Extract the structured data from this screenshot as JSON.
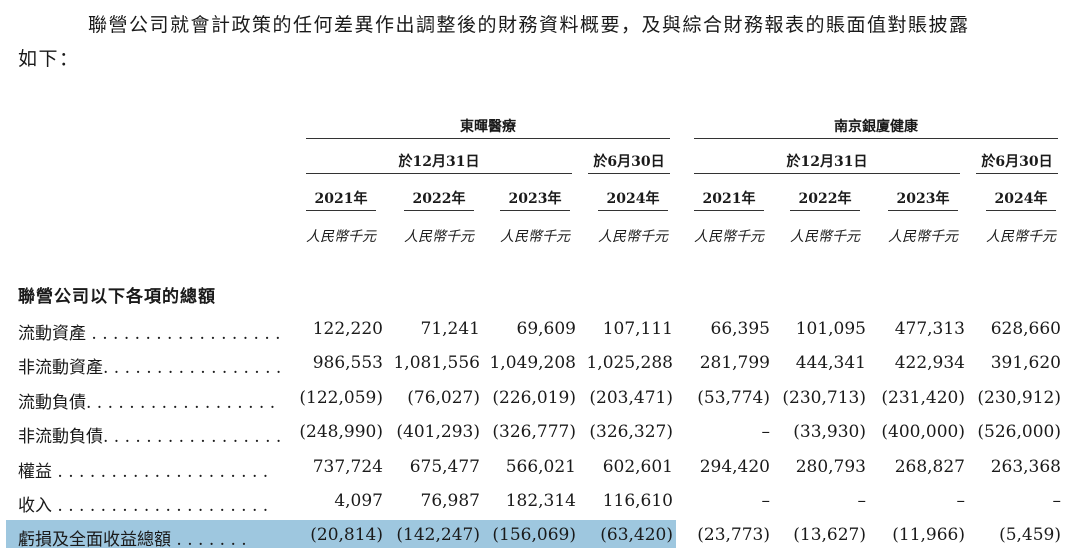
{
  "intro": {
    "line1": "聯營公司就會計政策的任何差異作出調整後的財務資料概要，及與綜合財務報表的賬面值對賬披露",
    "line2": "如下："
  },
  "companies": [
    "東暉醫療",
    "南京銀廈健康"
  ],
  "period_groups": [
    "於12月31日",
    "於6月30日",
    "於12月31日",
    "於6月30日"
  ],
  "years": [
    "2021年",
    "2022年",
    "2023年",
    "2024年",
    "2021年",
    "2022年",
    "2023年",
    "2024年"
  ],
  "units": [
    "人民幣千元",
    "人民幣千元",
    "人民幣千元",
    "人民幣千元",
    "人民幣千元",
    "人民幣千元",
    "人民幣千元",
    "人民幣千元"
  ],
  "section_title": "聯營公司以下各項的總額",
  "rows": [
    {
      "label": "流動資產 . . . . . . . . . . . . . . . . . .",
      "values": [
        "122,220",
        "71,241",
        "69,609",
        "107,111",
        "66,395",
        "101,095",
        "477,313",
        "628,660"
      ]
    },
    {
      "label": "非流動資產. . . . . . . . . . . . . . . . .",
      "values": [
        "986,553",
        "1,081,556",
        "1,049,208",
        "1,025,288",
        "281,799",
        "444,341",
        "422,934",
        "391,620"
      ]
    },
    {
      "label": "流動負債. . . . . . . . . . . . . . . . . .",
      "values": [
        "(122,059)",
        "(76,027)",
        "(226,019)",
        "(203,471)",
        "(53,774)",
        "(230,713)",
        "(231,420)",
        "(230,912)"
      ]
    },
    {
      "label": "非流動負債. . . . . . . . . . . . . . . . .",
      "values": [
        "(248,990)",
        "(401,293)",
        "(326,777)",
        "(326,327)",
        "–",
        "(33,930)",
        "(400,000)",
        "(526,000)"
      ]
    },
    {
      "label": "權益 . . . . . . . . . . . . . . . . . . . .",
      "values": [
        "737,724",
        "675,477",
        "566,021",
        "602,601",
        "294,420",
        "280,793",
        "268,827",
        "263,368"
      ]
    },
    {
      "label": "收入 . . . . . . . . . . . . . . . . . . . .",
      "values": [
        "4,097",
        "76,987",
        "182,314",
        "116,610",
        "–",
        "–",
        "–",
        "–"
      ]
    },
    {
      "label": "虧損及全面收益總額 . . . . . . .",
      "values": [
        "(20,814)",
        "(142,247)",
        "(156,069)",
        "(63,420)",
        "(23,773)",
        "(13,627)",
        "(11,966)",
        "(5,459)"
      ]
    }
  ]
}
